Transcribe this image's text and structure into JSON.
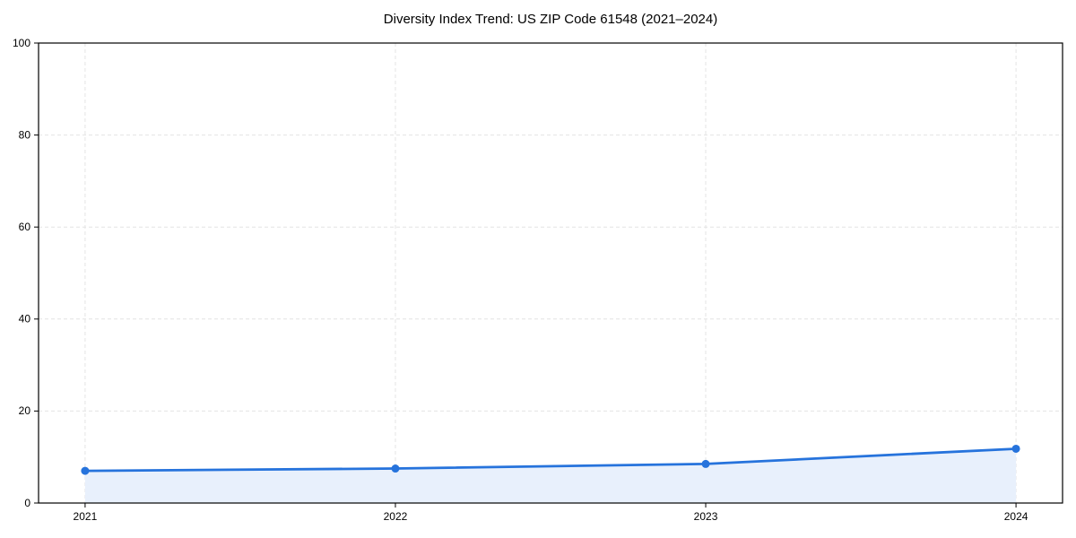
{
  "chart_data": {
    "type": "line",
    "title": "Diversity Index Trend: US ZIP Code 61548 (2021–2024)",
    "categories": [
      "2021",
      "2022",
      "2023",
      "2024"
    ],
    "series": [
      {
        "name": "Diversity Index",
        "values": [
          7.0,
          7.5,
          8.5,
          11.8
        ]
      }
    ],
    "xlabel": "",
    "ylabel": "",
    "ylim": [
      0,
      100
    ],
    "yticks": [
      0,
      20,
      40,
      60,
      80,
      100
    ],
    "grid": true,
    "grid_style": "dashed",
    "legend": "none",
    "marker": "circle",
    "area_fill": true,
    "colors": {
      "line": "#2673dc",
      "marker": "#2673dc",
      "area_fill": "#e8f0fc",
      "grid": "#e4e4e4",
      "spine": "#000000",
      "text": "#000000",
      "background": "#ffffff"
    }
  }
}
